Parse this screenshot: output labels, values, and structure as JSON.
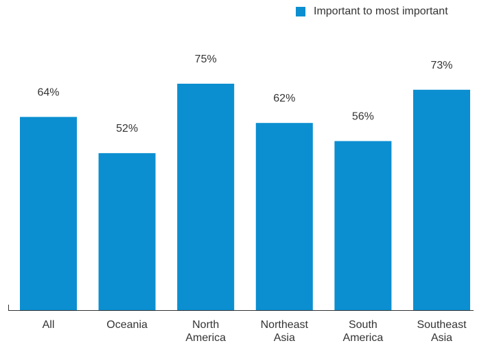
{
  "chart_data": {
    "type": "bar",
    "categories": [
      [
        "All"
      ],
      [
        "Oceania"
      ],
      [
        "North",
        "America"
      ],
      [
        "Northeast",
        "Asia"
      ],
      [
        "South",
        "America"
      ],
      [
        "Southeast",
        "Asia"
      ]
    ],
    "series": [
      {
        "name": "Important to most important",
        "values": [
          64,
          52,
          75,
          62,
          56,
          73
        ],
        "value_labels": [
          "64%",
          "52%",
          "75%",
          "62%",
          "56%",
          "73%"
        ],
        "color": "#0b8fd0"
      }
    ],
    "ylim": [
      0,
      100
    ],
    "grid": false,
    "legend": "top-right",
    "colors": {
      "axis": "#333333",
      "text": "#333333"
    }
  }
}
